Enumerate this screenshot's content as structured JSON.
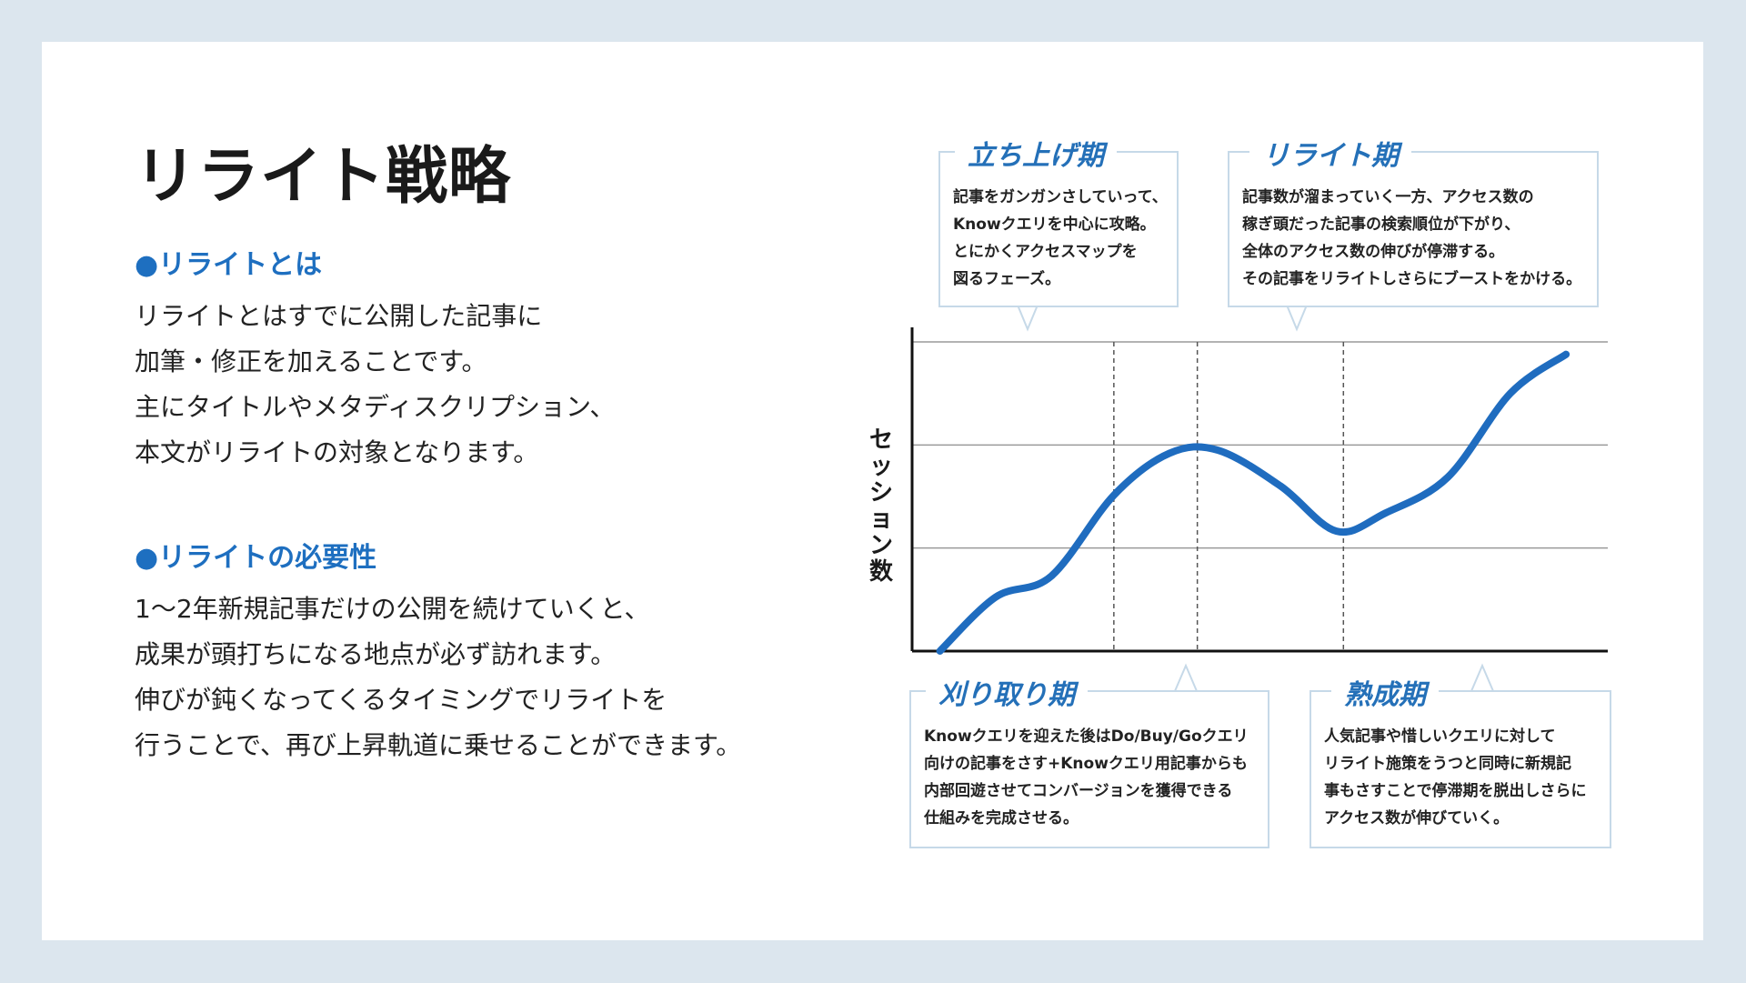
{
  "title": "リライト戦略",
  "sections": [
    {
      "heading": "●リライトとは",
      "lines": [
        "リライトとはすでに公開した記事に",
        "加筆・修正を加えることです。",
        "主にタイトルやメタディスクリプション、",
        "本文がリライトの対象となります。"
      ]
    },
    {
      "heading": "●リライトの必要性",
      "lines": [
        "1〜2年新規記事だけの公開を続けていくと、",
        "成果が頭打ちになる地点が必ず訪れます。",
        "伸びが鈍くなってくるタイミングでリライトを",
        "行うことで、再び上昇軌道に乗せることができます。"
      ]
    }
  ],
  "callouts": [
    {
      "title": "立ち上げ期",
      "lines": [
        "記事をガンガンさしていって、",
        "Knowクエリを中心に攻略。",
        "とにかくアクセスマップを",
        "図るフェーズ。"
      ]
    },
    {
      "title": "リライト期",
      "lines": [
        "記事数が溜まっていく一方、アクセス数の",
        "稼ぎ頭だった記事の検索順位が下がり、",
        "全体のアクセス数の伸びが停滞する。",
        "その記事をリライトしさらにブーストをかける。"
      ]
    },
    {
      "title": "刈り取り期",
      "lines": [
        "Knowクエリを迎えた後はDo/Buy/Goクエリ",
        "向けの記事をさす+Knowクエリ用記事からも",
        "内部回遊させてコンバージョンを獲得できる",
        "仕組みを完成させる。"
      ]
    },
    {
      "title": "熟成期",
      "lines": [
        "人気記事や惜しいクエリに対して",
        "リライト施策をうつと同時に新規記",
        "事もさすことで停滞期を脱出しさらに",
        "アクセス数が伸びていく。"
      ]
    }
  ],
  "chart_data": {
    "type": "line",
    "ylabel": "セッション数",
    "xlabel": "",
    "grid": true,
    "y_gridlines": 3,
    "phase_boundaries": [
      0.29,
      0.41,
      0.62
    ],
    "series": [
      {
        "color": "#1f6cbf",
        "x": [
          0.04,
          0.12,
          0.2,
          0.29,
          0.37,
          0.44,
          0.53,
          0.61,
          0.68,
          0.77,
          0.86,
          0.94
        ],
        "y": [
          0.0,
          0.18,
          0.25,
          0.52,
          0.66,
          0.67,
          0.55,
          0.4,
          0.46,
          0.58,
          0.86,
          0.99
        ]
      }
    ],
    "xlim": [
      0,
      1
    ],
    "ylim": [
      0,
      1.08
    ]
  }
}
